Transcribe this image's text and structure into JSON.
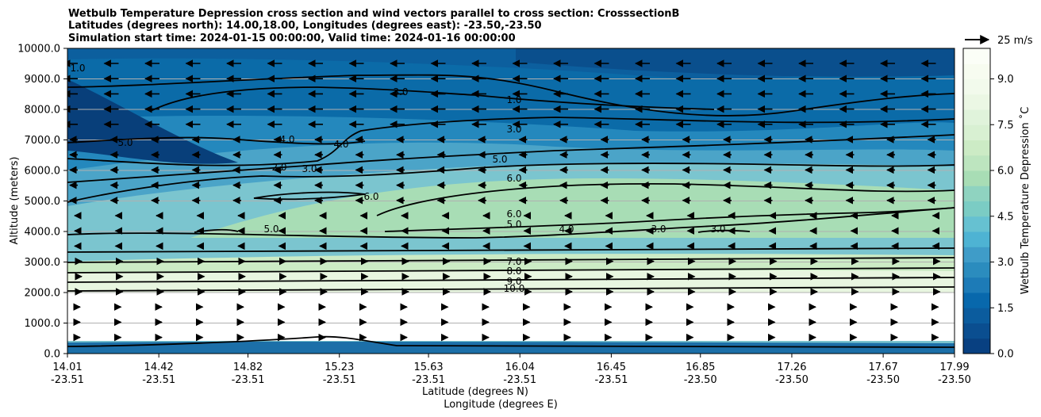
{
  "chart_data": {
    "type": "contour",
    "title_lines": [
      "Wetbulb Temperature Depression cross section and wind vectors parallel to cross section: CrosssectionB",
      "Latitudes (degrees north): 14.00,18.00, Longitudes (degrees east): -23.50,-23.50",
      "Simulation start time: 2024-01-15 00:00:00, Valid time: 2024-01-16 00:00:00"
    ],
    "xlabel_lat": "Latitude (degrees N)",
    "xlabel_lon": "Longitude (degrees E)",
    "ylabel": "Altitude (meters)",
    "ylim": [
      0,
      10000
    ],
    "y_ticks": [
      "0.0",
      "1000.0",
      "2000.0",
      "3000.0",
      "4000.0",
      "5000.0",
      "6000.0",
      "7000.0",
      "8000.0",
      "9000.0",
      "10000.0"
    ],
    "x_ticks": [
      {
        "lat": "14.01",
        "lon": "-23.51"
      },
      {
        "lat": "14.42",
        "lon": "-23.51"
      },
      {
        "lat": "14.82",
        "lon": "-23.51"
      },
      {
        "lat": "15.23",
        "lon": "-23.51"
      },
      {
        "lat": "15.63",
        "lon": "-23.51"
      },
      {
        "lat": "16.04",
        "lon": "-23.51"
      },
      {
        "lat": "16.45",
        "lon": "-23.51"
      },
      {
        "lat": "16.85",
        "lon": "-23.50"
      },
      {
        "lat": "17.26",
        "lon": "-23.50"
      },
      {
        "lat": "17.67",
        "lon": "-23.50"
      },
      {
        "lat": "17.99",
        "lon": "-23.50"
      }
    ],
    "grid": "horizontal",
    "colorbar": {
      "label": "Wetbulb Temperature Depression ˚C",
      "range": [
        0,
        10
      ],
      "ticks": [
        "0.0",
        "1.5",
        "3.0",
        "4.5",
        "6.0",
        "7.5",
        "9.0"
      ]
    },
    "quiver_key": "25 m/s",
    "contour_labels": [
      "1.0",
      "3.0",
      "5.0",
      "6.0",
      "5.0",
      "6.0",
      "7.0",
      "8.0",
      "9.0",
      "10.0",
      "2.0",
      "3.0",
      "4.0",
      "6.0",
      "5.0",
      "4.0",
      "3.0",
      "3.0",
      "5.0",
      "1.0",
      "3.0",
      "4.0"
    ],
    "colors": {
      "low": "#084081",
      "high": "#f7fcf0",
      "contour_line": "#000000",
      "grid": "#b0b0b0"
    }
  }
}
